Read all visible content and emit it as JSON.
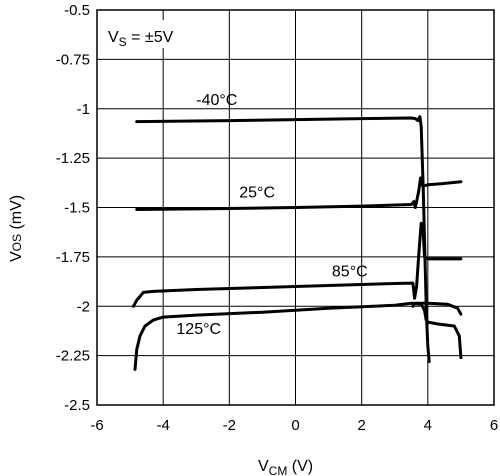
{
  "chart_data": {
    "type": "line",
    "condition_label": {
      "main": "V",
      "sub": "S",
      "rest": " = ±5V"
    },
    "xlabel": {
      "main": "V",
      "sub": "CM",
      "rest": " (V)"
    },
    "ylabel": {
      "main": "V",
      "sub": "OS",
      "rest": " (mV)"
    },
    "xlim": [
      -6,
      6
    ],
    "ylim": [
      -2.5,
      -0.5
    ],
    "grid": true,
    "x_ticks": [
      -6,
      -4,
      -2,
      0,
      2,
      4,
      6
    ],
    "x_tick_labels": [
      "-6",
      "-4",
      "-2",
      "0",
      "2",
      "4",
      "6"
    ],
    "y_ticks": [
      -0.5,
      -0.75,
      -1,
      -1.25,
      -1.5,
      -1.75,
      -2,
      -2.25,
      -2.5
    ],
    "y_tick_labels": [
      "-0.5",
      "-0.75",
      "-1",
      "-1.25",
      "-1.5",
      "-1.75",
      "-2",
      "-2.25",
      "-2.5"
    ],
    "series": [
      {
        "name": "-40°C",
        "label_at": [
          -3.0,
          -0.98
        ],
        "points": [
          [
            -4.8,
            -1.065
          ],
          [
            -2,
            -1.06
          ],
          [
            0,
            -1.055
          ],
          [
            2,
            -1.05
          ],
          [
            3.5,
            -1.047
          ],
          [
            3.62,
            -1.05
          ],
          [
            3.7,
            -1.06
          ],
          [
            3.76,
            -1.04
          ],
          [
            3.8,
            -1.09
          ],
          [
            3.86,
            -1.4
          ],
          [
            3.92,
            -1.8
          ],
          [
            3.96,
            -2.05
          ],
          [
            4.0,
            -2.2
          ],
          [
            4.04,
            -2.28
          ]
        ]
      },
      {
        "name": "25°C",
        "label_at": [
          -1.7,
          -1.45
        ],
        "points": [
          [
            -4.8,
            -1.51
          ],
          [
            -2,
            -1.505
          ],
          [
            0,
            -1.5
          ],
          [
            2,
            -1.493
          ],
          [
            3.5,
            -1.485
          ],
          [
            3.58,
            -1.47
          ],
          [
            3.62,
            -1.5
          ],
          [
            3.66,
            -1.47
          ],
          [
            3.72,
            -1.42
          ],
          [
            3.78,
            -1.35
          ],
          [
            3.84,
            -1.39
          ],
          [
            3.9,
            -1.39
          ],
          [
            4.0,
            -1.385
          ],
          [
            4.4,
            -1.38
          ],
          [
            5.0,
            -1.37
          ]
        ]
      },
      {
        "name": "85°C",
        "label_at": [
          1.1,
          -1.85
        ],
        "points": [
          [
            -4.9,
            -2.0
          ],
          [
            -4.8,
            -1.97
          ],
          [
            -4.6,
            -1.93
          ],
          [
            -4.3,
            -1.925
          ],
          [
            -3,
            -1.915
          ],
          [
            -1,
            -1.905
          ],
          [
            1,
            -1.895
          ],
          [
            3,
            -1.885
          ],
          [
            3.55,
            -1.883
          ],
          [
            3.6,
            -1.96
          ],
          [
            3.66,
            -1.9
          ],
          [
            3.72,
            -1.75
          ],
          [
            3.8,
            -1.58
          ],
          [
            3.86,
            -1.62
          ],
          [
            3.9,
            -1.75
          ],
          [
            4.0,
            -1.76
          ],
          [
            4.5,
            -1.76
          ],
          [
            5.0,
            -1.76
          ]
        ]
      },
      {
        "name": "125°C",
        "label_at": [
          -3.6,
          -2.14
        ],
        "points": [
          [
            -4.85,
            -2.32
          ],
          [
            -4.8,
            -2.22
          ],
          [
            -4.7,
            -2.15
          ],
          [
            -4.55,
            -2.1
          ],
          [
            -4.3,
            -2.07
          ],
          [
            -4.0,
            -2.055
          ],
          [
            -3.0,
            -2.045
          ],
          [
            -1.0,
            -2.03
          ],
          [
            1.0,
            -2.01
          ],
          [
            3.0,
            -1.995
          ],
          [
            3.5,
            -1.985
          ],
          [
            3.8,
            -1.99
          ],
          [
            3.9,
            -2.02
          ],
          [
            3.95,
            -2.07
          ],
          [
            4.0,
            -2.08
          ],
          [
            4.3,
            -2.09
          ],
          [
            4.8,
            -2.1
          ],
          [
            4.95,
            -2.15
          ],
          [
            5.0,
            -2.26
          ]
        ]
      },
      {
        "name": "",
        "points": [
          [
            3.55,
            -2.0
          ],
          [
            3.6,
            -1.985
          ],
          [
            4.0,
            -1.985
          ],
          [
            4.6,
            -1.99
          ],
          [
            4.9,
            -2.01
          ],
          [
            5.0,
            -2.04
          ]
        ]
      }
    ]
  }
}
